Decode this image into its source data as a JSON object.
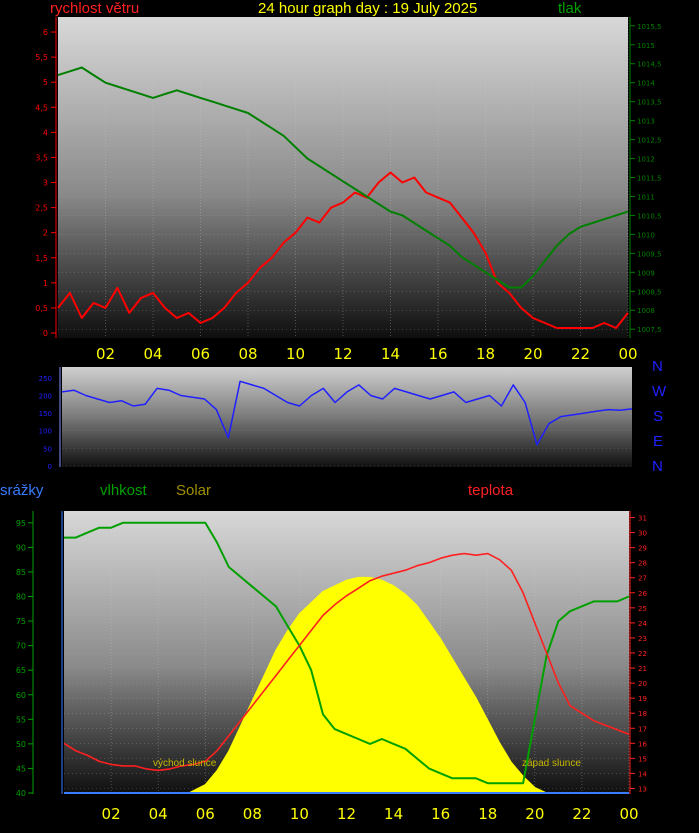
{
  "header": {
    "title": "24 hour graph day : 19 July 2025",
    "wind_label": "rychlost větru",
    "pressure_label": "tlak",
    "rain_label": "srážky",
    "humidity_label": "vlhkost",
    "solar_label": "Solar",
    "temp_label": "teplota"
  },
  "colors": {
    "wind": "#ff0000",
    "pressure": "#008000",
    "direction": "#2020ff",
    "humidity": "#00a000",
    "temperature": "#ff2020",
    "solar": "#ffff00",
    "rain": "#3a7bff",
    "title": "#ffff00"
  },
  "x_ticks": [
    "02",
    "04",
    "06",
    "08",
    "10",
    "12",
    "14",
    "16",
    "18",
    "20",
    "22",
    "00"
  ],
  "compass": [
    "N",
    "W",
    "S",
    "E",
    "N"
  ],
  "annotations": {
    "sunrise": "východ slunce",
    "sunset": "západ slunce"
  },
  "chart_data": [
    {
      "type": "line",
      "title": "24 hour graph day : 19 July 2025",
      "x_unit": "hour",
      "xlim": [
        0,
        24
      ],
      "series": [
        {
          "name": "rychlost větru",
          "axis": "left",
          "ylim": [
            0,
            6.2
          ],
          "ticks": [
            "0",
            "0,5",
            "1",
            "1,5",
            "2",
            "2,5",
            "3",
            "3,5",
            "4",
            "4,5",
            "5",
            "5,5",
            "6"
          ],
          "x": [
            0,
            0.5,
            1,
            1.5,
            2,
            2.5,
            3,
            3.5,
            4,
            4.5,
            5,
            5.5,
            6,
            6.5,
            7,
            7.5,
            8,
            8.5,
            9,
            9.5,
            10,
            10.5,
            11,
            11.5,
            12,
            12.5,
            13,
            13.5,
            14,
            14.5,
            15,
            15.5,
            16,
            16.5,
            17,
            17.5,
            18,
            18.5,
            19,
            19.5,
            20,
            20.5,
            21,
            21.5,
            22,
            22.5,
            23,
            23.5,
            24
          ],
          "y": [
            0.5,
            0.8,
            0.3,
            0.6,
            0.5,
            0.9,
            0.4,
            0.7,
            0.8,
            0.5,
            0.3,
            0.4,
            0.2,
            0.3,
            0.5,
            0.8,
            1.0,
            1.3,
            1.5,
            1.8,
            2.0,
            2.3,
            2.2,
            2.5,
            2.6,
            2.8,
            2.7,
            3.0,
            3.2,
            3.0,
            3.1,
            2.8,
            2.7,
            2.6,
            2.3,
            2.0,
            1.6,
            1.0,
            0.8,
            0.5,
            0.3,
            0.2,
            0.1,
            0.1,
            0.1,
            0.1,
            0.2,
            0.1,
            0.4
          ]
        },
        {
          "name": "tlak",
          "axis": "right",
          "ylim": [
            1007.4,
            1015.6
          ],
          "ticks": [
            "1007,5",
            "1008",
            "1008,5",
            "1009",
            "1009,5",
            "1010",
            "1010,5",
            "1011",
            "1011,5",
            "1012",
            "1012,5",
            "1013",
            "1013,5",
            "1014",
            "1014,5",
            "1015",
            "1015,5"
          ],
          "x": [
            0,
            0.5,
            1,
            1.5,
            2,
            2.5,
            3,
            3.5,
            4,
            4.5,
            5,
            5.5,
            6,
            6.5,
            7,
            7.5,
            8,
            8.5,
            9,
            9.5,
            10,
            10.5,
            11,
            11.5,
            12,
            12.5,
            13,
            13.5,
            14,
            14.5,
            15,
            15.5,
            16,
            16.5,
            17,
            17.5,
            18,
            18.5,
            19,
            19.5,
            20,
            20.5,
            21,
            21.5,
            22,
            22.5,
            23,
            23.5,
            24
          ],
          "y": [
            1014.2,
            1014.3,
            1014.4,
            1014.2,
            1014.0,
            1013.9,
            1013.8,
            1013.7,
            1013.6,
            1013.7,
            1013.8,
            1013.7,
            1013.6,
            1013.5,
            1013.4,
            1013.3,
            1013.2,
            1013.0,
            1012.8,
            1012.6,
            1012.3,
            1012.0,
            1011.8,
            1011.6,
            1011.4,
            1011.2,
            1011.0,
            1010.8,
            1010.6,
            1010.5,
            1010.3,
            1010.1,
            1009.9,
            1009.7,
            1009.4,
            1009.2,
            1009.0,
            1008.8,
            1008.6,
            1008.6,
            1008.9,
            1009.3,
            1009.7,
            1010.0,
            1010.2,
            1010.3,
            1010.4,
            1010.5,
            1010.6
          ]
        }
      ]
    },
    {
      "type": "scatter",
      "title": "",
      "x_unit": "hour",
      "xlim": [
        0,
        24
      ],
      "ylim": [
        0,
        360
      ],
      "ticks": [
        "0",
        "50",
        "100",
        "150",
        "200",
        "250"
      ],
      "series": [
        {
          "name": "",
          "x": [
            0,
            0.5,
            1,
            1.5,
            2,
            2.5,
            3,
            3.5,
            4,
            4.5,
            5,
            5.5,
            6,
            6.5,
            7,
            7.5,
            8,
            8.5,
            9,
            9.5,
            10,
            10.5,
            11,
            11.5,
            12,
            12.5,
            13,
            13.5,
            14,
            14.5,
            15,
            15.5,
            16,
            16.5,
            17,
            17.5,
            18,
            18.5,
            19,
            19.5,
            20,
            20.5,
            21,
            21.5,
            22,
            22.5,
            23,
            23.5,
            24
          ],
          "y": [
            210,
            215,
            200,
            190,
            180,
            185,
            170,
            175,
            220,
            215,
            200,
            195,
            190,
            160,
            80,
            240,
            230,
            220,
            200,
            180,
            170,
            200,
            220,
            180,
            210,
            230,
            200,
            190,
            220,
            210,
            200,
            190,
            200,
            210,
            180,
            190,
            200,
            170,
            230,
            180,
            60,
            120,
            140,
            145,
            150,
            155,
            160,
            158,
            162
          ]
        }
      ]
    },
    {
      "type": "line",
      "title": "",
      "x_unit": "hour",
      "xlim": [
        0,
        24
      ],
      "series": [
        {
          "name": "vlhkost",
          "axis": "left",
          "ylim": [
            40,
            97
          ],
          "ticks": [
            "40",
            "45",
            "50",
            "55",
            "60",
            "65",
            "70",
            "75",
            "80",
            "85",
            "90",
            "95"
          ],
          "x": [
            0,
            0.5,
            1,
            1.5,
            2,
            2.5,
            3,
            3.5,
            4,
            4.5,
            5,
            5.5,
            6,
            6.5,
            7,
            7.5,
            8,
            8.5,
            9,
            9.5,
            10,
            10.5,
            11,
            11.5,
            12,
            12.5,
            13,
            13.5,
            14,
            14.5,
            15,
            15.5,
            16,
            16.5,
            17,
            17.5,
            18,
            18.5,
            19,
            19.5,
            20,
            20.5,
            21,
            21.5,
            22,
            22.5,
            23,
            23.5,
            24
          ],
          "y": [
            92,
            92,
            93,
            94,
            94,
            95,
            95,
            95,
            95,
            95,
            95,
            95,
            95,
            91,
            86,
            84,
            82,
            80,
            78,
            74,
            70,
            65,
            56,
            53,
            52,
            51,
            50,
            51,
            50,
            49,
            47,
            45,
            44,
            43,
            43,
            43,
            42,
            42,
            42,
            42,
            55,
            68,
            75,
            77,
            78,
            79,
            79,
            79,
            80
          ]
        },
        {
          "name": "teplota",
          "axis": "right",
          "ylim": [
            12.7,
            31.3
          ],
          "ticks": [
            "13",
            "14",
            "15",
            "16",
            "17",
            "18",
            "19",
            "20",
            "21",
            "22",
            "23",
            "24",
            "25",
            "26",
            "27",
            "28",
            "29",
            "30",
            "31"
          ],
          "x": [
            0,
            0.5,
            1,
            1.5,
            2,
            2.5,
            3,
            3.5,
            4,
            4.5,
            5,
            5.5,
            6,
            6.5,
            7,
            7.5,
            8,
            8.5,
            9,
            9.5,
            10,
            10.5,
            11,
            11.5,
            12,
            12.5,
            13,
            13.5,
            14,
            14.5,
            15,
            15.5,
            16,
            16.5,
            17,
            17.5,
            18,
            18.5,
            19,
            19.5,
            20,
            20.5,
            21,
            21.5,
            22,
            22.5,
            23,
            23.5,
            24
          ],
          "y": [
            16.0,
            15.5,
            15.2,
            14.8,
            14.6,
            14.5,
            14.5,
            14.3,
            14.2,
            14.3,
            14.5,
            14.6,
            14.8,
            15.5,
            16.5,
            17.5,
            18.5,
            19.5,
            20.5,
            21.5,
            22.5,
            23.5,
            24.5,
            25.2,
            25.8,
            26.3,
            26.8,
            27.1,
            27.3,
            27.5,
            27.8,
            28.0,
            28.3,
            28.5,
            28.6,
            28.5,
            28.6,
            28.2,
            27.5,
            26.0,
            24.0,
            22.0,
            20.0,
            18.5,
            18.0,
            17.5,
            17.2,
            16.9,
            16.6
          ]
        },
        {
          "name": "Solar",
          "type": "area",
          "x": [
            5.3,
            6,
            6.5,
            7,
            7.5,
            8,
            8.5,
            9,
            9.5,
            10,
            10.5,
            11,
            11.5,
            12,
            12.5,
            13,
            13.5,
            14,
            14.5,
            15,
            15.5,
            16,
            16.5,
            17,
            17.5,
            18,
            18.5,
            19,
            19.5,
            20,
            20.5
          ],
          "y": [
            0,
            3,
            8,
            15,
            24,
            33,
            42,
            51,
            58,
            64,
            68,
            72,
            74,
            76,
            77,
            77,
            76,
            74,
            71,
            67,
            61,
            55,
            48,
            41,
            34,
            26,
            18,
            11,
            6,
            2,
            0
          ],
          "ylim": [
            0,
            100
          ]
        },
        {
          "name": "srážky",
          "ylim": [
            0,
            5
          ],
          "x": [
            0,
            24
          ],
          "y": [
            0,
            0
          ]
        }
      ]
    }
  ]
}
